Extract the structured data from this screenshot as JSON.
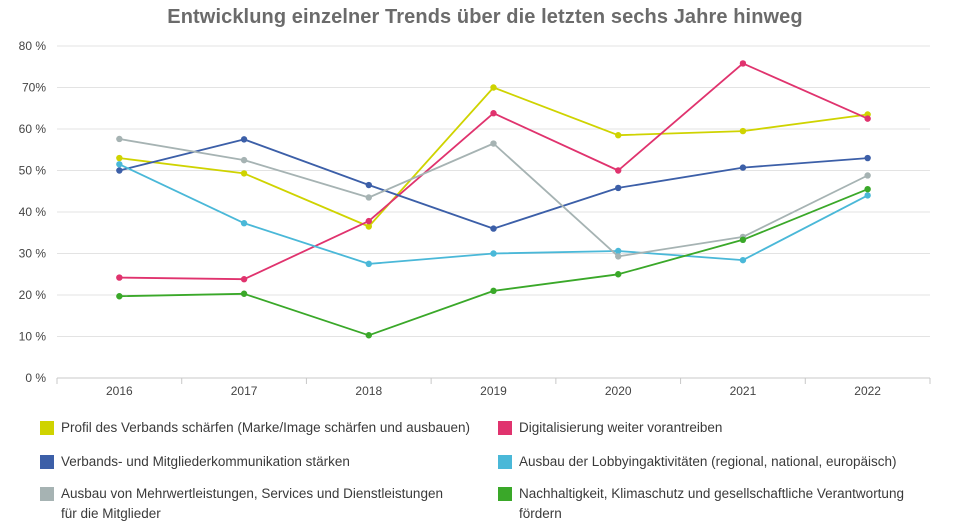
{
  "chart_data": {
    "type": "line",
    "title": "Entwicklung einzelner Trends über die letzten sechs Jahre hinweg",
    "xlabel": "",
    "ylabel": "",
    "categories": [
      "2016",
      "2017",
      "2018",
      "2019",
      "2020",
      "2021",
      "2022"
    ],
    "ylim": [
      0,
      80
    ],
    "yticks": [
      0,
      10,
      20,
      30,
      40,
      50,
      60,
      70,
      80
    ],
    "ytick_labels": [
      "0 %",
      "10 %",
      "20 %",
      "30 %",
      "40 %",
      "50 %",
      "60 %",
      "70%",
      "80 %"
    ],
    "grid": true,
    "legend_position": "bottom",
    "series": [
      {
        "name": "Profil des Verbands schärfen (Marke/Image schärfen und ausbauen)",
        "color": "#cfd300",
        "values": [
          53,
          49.3,
          36.5,
          70,
          58.5,
          59.5,
          63.5
        ]
      },
      {
        "name": "Digitalisierung weiter vorantreiben",
        "color": "#e0336e",
        "values": [
          24.2,
          23.8,
          37.8,
          63.8,
          50,
          75.8,
          62.5
        ]
      },
      {
        "name": "Verbands- und Mitgliederkommunikation stärken",
        "color": "#3c5fa8",
        "values": [
          50,
          57.5,
          46.5,
          36,
          45.8,
          50.7,
          53
        ]
      },
      {
        "name": "Ausbau der Lobbyingaktivitäten (regional, national, europäisch)",
        "color": "#4ab8d8",
        "values": [
          51.5,
          37.3,
          27.5,
          30,
          30.6,
          28.4,
          44
        ]
      },
      {
        "name": "Ausbau von Mehrwertleistungen, Services und Dienstleistungen für die Mitglieder",
        "color": "#a6b3b3",
        "values": [
          57.6,
          52.5,
          43.5,
          56.5,
          29.3,
          34,
          48.8
        ]
      },
      {
        "name": "Nachhaltigkeit, Klimaschutz und gesellschaftliche Verantwortung fördern",
        "color": "#3aa829",
        "values": [
          19.7,
          20.3,
          10.3,
          21,
          25,
          33.3,
          45.5
        ]
      }
    ]
  }
}
